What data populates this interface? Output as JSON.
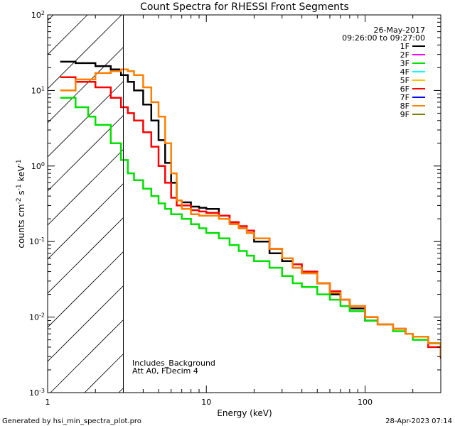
{
  "chart_data": {
    "type": "line",
    "title": "Count Spectra for RHESSI Front Segments",
    "xlabel": "Energy (keV)",
    "ylabel": "counts cm^-2 s^-1 keV^-1",
    "xscale": "log",
    "yscale": "log",
    "xlim": [
      1,
      300
    ],
    "ylim": [
      0.001,
      100
    ],
    "x_ticks": [
      "1",
      "10",
      "100"
    ],
    "y_ticks": [
      {
        "base": "10",
        "exp": "2"
      },
      {
        "base": "10",
        "exp": "1"
      },
      {
        "base": "10",
        "exp": "0"
      },
      {
        "base": "10",
        "exp": "-1"
      },
      {
        "base": "10",
        "exp": "-2"
      },
      {
        "base": "10",
        "exp": "-3"
      }
    ],
    "date": "26-May-2017",
    "time_range": "09:26:00 to 09:27:00",
    "shaded_region_max_keV": 3,
    "annotations": [
      "Includes_Background",
      "Att A0, FDecim 4"
    ],
    "footer_left": "Generated by hsi_min_spectra_plot.pro",
    "footer_right": "28-Apr-2023 07:14",
    "legend": [
      {
        "name": "1F",
        "color": "#000000"
      },
      {
        "name": "2F",
        "color": "#ff00ff"
      },
      {
        "name": "3F",
        "color": "#00e000"
      },
      {
        "name": "4F",
        "color": "#00ffff"
      },
      {
        "name": "5F",
        "color": "#ffc000"
      },
      {
        "name": "6F",
        "color": "#ff0000"
      },
      {
        "name": "7F",
        "color": "#0000ff"
      },
      {
        "name": "8F",
        "color": "#ff8000"
      },
      {
        "name": "9F",
        "color": "#808000"
      }
    ],
    "series": [
      {
        "name": "1F",
        "color": "#000000",
        "x": [
          1.2,
          1.5,
          2.0,
          2.5,
          2.9,
          3.2,
          3.5,
          4.0,
          4.5,
          5.0,
          5.5,
          6.0,
          6.5,
          7.0,
          8.0,
          9.0,
          10,
          12,
          14,
          16,
          18,
          20,
          25,
          30,
          35,
          40,
          50,
          60,
          70,
          80,
          100,
          120,
          150,
          180,
          200,
          250,
          300
        ],
        "y": [
          24,
          23,
          21,
          19,
          16,
          13,
          10,
          6.5,
          4,
          2.2,
          1.1,
          0.6,
          0.35,
          0.33,
          0.29,
          0.28,
          0.27,
          0.22,
          0.18,
          0.15,
          0.13,
          0.1,
          0.07,
          0.055,
          0.045,
          0.038,
          0.028,
          0.02,
          0.017,
          0.013,
          0.009,
          0.008,
          0.007,
          0.006,
          0.0055,
          0.0045,
          0.003
        ]
      },
      {
        "name": "3F",
        "color": "#00e000",
        "x": [
          1.2,
          1.5,
          1.8,
          2.0,
          2.5,
          2.9,
          3.2,
          3.5,
          4.0,
          4.5,
          5.0,
          5.5,
          6.0,
          7.0,
          8.0,
          9.0,
          10,
          12,
          14,
          16,
          18,
          20,
          25,
          30,
          35,
          40,
          50,
          60,
          70,
          80,
          100,
          120,
          150,
          180,
          200,
          250,
          300
        ],
        "y": [
          8,
          6,
          4.5,
          3.5,
          2,
          1.2,
          0.8,
          0.65,
          0.5,
          0.4,
          0.32,
          0.27,
          0.23,
          0.2,
          0.17,
          0.15,
          0.13,
          0.11,
          0.09,
          0.075,
          0.065,
          0.055,
          0.045,
          0.035,
          0.028,
          0.025,
          0.02,
          0.017,
          0.014,
          0.012,
          0.009,
          0.008,
          0.0065,
          0.006,
          0.005,
          0.0045,
          0.003
        ]
      },
      {
        "name": "6F",
        "color": "#ff0000",
        "x": [
          1.2,
          1.5,
          2.0,
          2.5,
          2.9,
          3.2,
          3.5,
          4.0,
          4.5,
          5.0,
          5.5,
          6.0,
          6.5,
          7.0,
          8.0,
          9.0,
          10,
          12,
          14,
          16,
          18,
          20,
          25,
          30,
          35,
          40,
          50,
          60,
          70,
          80,
          100,
          120,
          150,
          180,
          200,
          250,
          300
        ],
        "y": [
          15,
          13,
          11,
          8,
          6,
          5,
          4,
          2.8,
          1.8,
          1.0,
          0.6,
          0.38,
          0.3,
          0.3,
          0.26,
          0.25,
          0.24,
          0.22,
          0.18,
          0.16,
          0.14,
          0.11,
          0.08,
          0.06,
          0.05,
          0.04,
          0.028,
          0.022,
          0.017,
          0.014,
          0.01,
          0.008,
          0.007,
          0.006,
          0.0055,
          0.004,
          0.0028
        ]
      },
      {
        "name": "8F",
        "color": "#ff8000",
        "x": [
          1.2,
          1.5,
          2.0,
          2.5,
          2.9,
          3.2,
          3.5,
          4.0,
          4.5,
          5.0,
          5.5,
          6.0,
          6.5,
          7.0,
          8.0,
          9.0,
          10,
          12,
          14,
          16,
          18,
          20,
          25,
          30,
          35,
          40,
          50,
          60,
          70,
          80,
          100,
          120,
          150,
          180,
          200,
          250,
          300
        ],
        "y": [
          10,
          14,
          17,
          18,
          19,
          18,
          16,
          11,
          7,
          4.5,
          2.0,
          0.8,
          0.35,
          0.27,
          0.23,
          0.22,
          0.22,
          0.2,
          0.17,
          0.15,
          0.13,
          0.11,
          0.08,
          0.06,
          0.045,
          0.038,
          0.028,
          0.021,
          0.017,
          0.014,
          0.01,
          0.008,
          0.007,
          0.006,
          0.0055,
          0.0045,
          0.003
        ]
      }
    ]
  }
}
